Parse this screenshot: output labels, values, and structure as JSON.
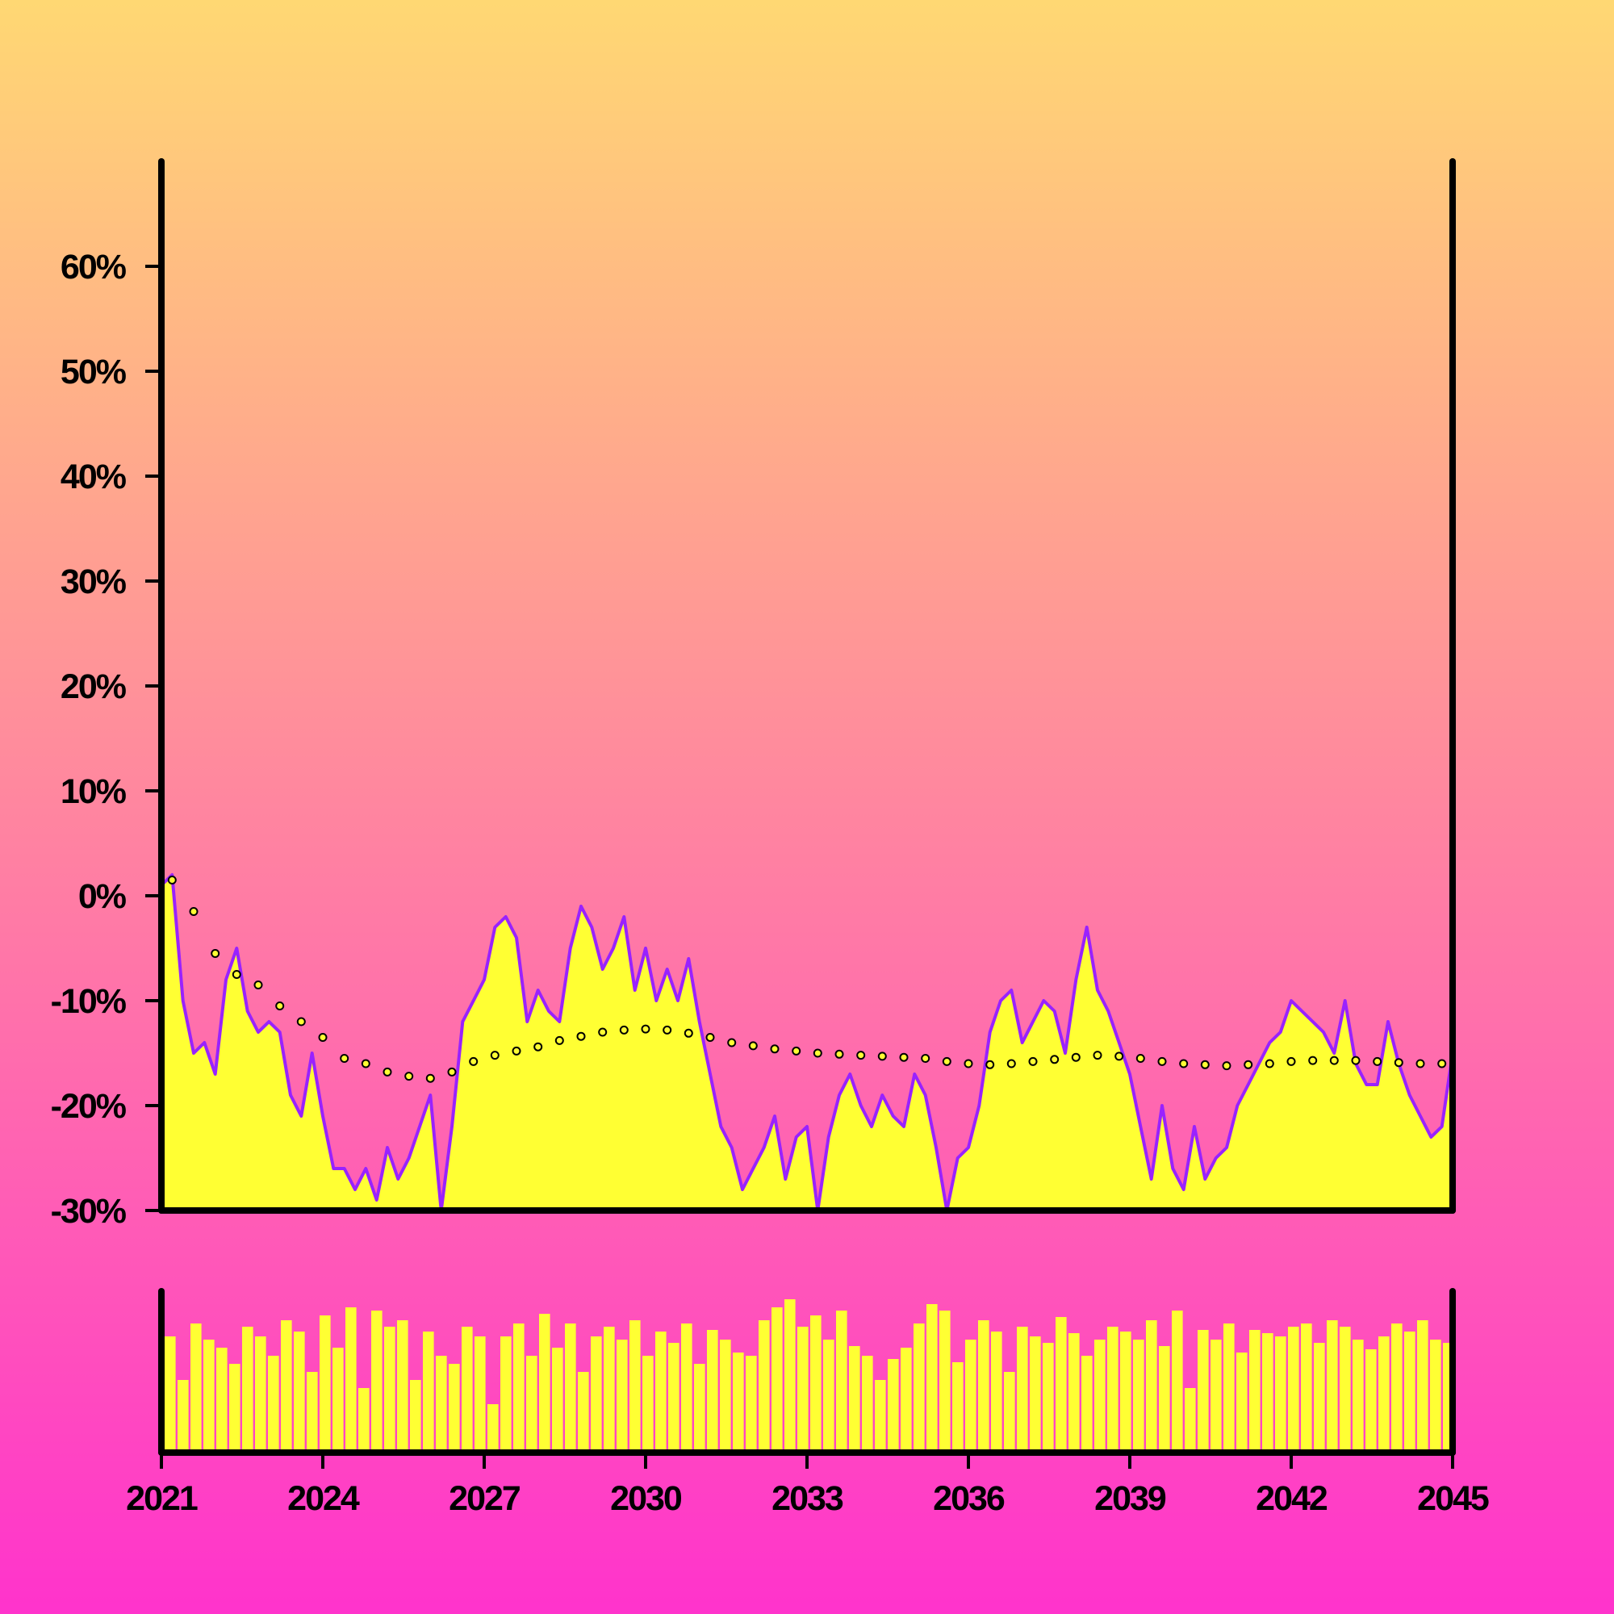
{
  "colors": {
    "background_top": "#ffd873",
    "background_bottom": "#ff33cc",
    "area_fill": "#ffff33",
    "price_line": "#9922ff",
    "trend_dot_fill": "#ffff33",
    "trend_dot_stroke": "#000000",
    "axis": "#000000"
  },
  "chart_data": {
    "type": "area",
    "title": "",
    "xlabel": "",
    "ylabel": "",
    "grid": false,
    "legend": "none",
    "x_range": [
      2021.0,
      2045.0
    ],
    "y_range": [
      -30,
      70
    ],
    "y_ticks": [
      -30,
      -20,
      -10,
      0,
      10,
      20,
      30,
      40,
      50,
      60
    ],
    "y_tick_labels": [
      "-30%",
      "-20%",
      "-10%",
      "0%",
      "10%",
      "20%",
      "30%",
      "40%",
      "50%",
      "60%"
    ],
    "x_ticks": [
      2021,
      2024,
      2027,
      2030,
      2033,
      2036,
      2039,
      2042,
      2045
    ],
    "x_tick_labels": [
      "2021",
      "2024",
      "2027",
      "2030",
      "2033",
      "2036",
      "2039",
      "2042",
      "2045"
    ],
    "series": [
      {
        "role": "main-line-with-area",
        "x": [
          2021.0,
          2021.2,
          2021.4,
          2021.6,
          2021.8,
          2022.0,
          2022.2,
          2022.4,
          2022.6,
          2022.8,
          2023.0,
          2023.2,
          2023.4,
          2023.6,
          2023.8,
          2024.0,
          2024.2,
          2024.4,
          2024.6,
          2024.8,
          2025.0,
          2025.2,
          2025.4,
          2025.6,
          2025.8,
          2026.0,
          2026.2,
          2026.4,
          2026.6,
          2026.8,
          2027.0,
          2027.2,
          2027.4,
          2027.6,
          2027.8,
          2028.0,
          2028.2,
          2028.4,
          2028.6,
          2028.8,
          2029.0,
          2029.2,
          2029.4,
          2029.6,
          2029.8,
          2030.0,
          2030.2,
          2030.4,
          2030.6,
          2030.8,
          2031.0,
          2031.2,
          2031.4,
          2031.6,
          2031.8,
          2032.0,
          2032.2,
          2032.4,
          2032.6,
          2032.8,
          2033.0,
          2033.2,
          2033.4,
          2033.6,
          2033.8,
          2034.0,
          2034.2,
          2034.4,
          2034.6,
          2034.8,
          2035.0,
          2035.2,
          2035.4,
          2035.6,
          2035.8,
          2036.0,
          2036.2,
          2036.4,
          2036.6,
          2036.8,
          2037.0,
          2037.2,
          2037.4,
          2037.6,
          2037.8,
          2038.0,
          2038.2,
          2038.4,
          2038.6,
          2038.8,
          2039.0,
          2039.2,
          2039.4,
          2039.6,
          2039.8,
          2040.0,
          2040.2,
          2040.4,
          2040.6,
          2040.8,
          2041.0,
          2041.2,
          2041.4,
          2041.6,
          2041.8,
          2042.0,
          2042.2,
          2042.4,
          2042.6,
          2042.8,
          2043.0,
          2043.2,
          2043.4,
          2043.6,
          2043.8,
          2044.0,
          2044.2,
          2044.4,
          2044.6,
          2044.8,
          2045.0
        ],
        "values": [
          1,
          2,
          -10,
          -15,
          -14,
          -17,
          -8,
          -5,
          -11,
          -13,
          -12,
          -13,
          -19,
          -21,
          -15,
          -21,
          -26,
          -26,
          -28,
          -26,
          -29,
          -24,
          -27,
          -25,
          -22,
          -19,
          -30,
          -22,
          -12,
          -10,
          -8,
          -3,
          -2,
          -4,
          -12,
          -9,
          -11,
          -12,
          -5,
          -1,
          -3,
          -7,
          -5,
          -2,
          -9,
          -5,
          -10,
          -7,
          -10,
          -6,
          -12,
          -17,
          -22,
          -24,
          -28,
          -26,
          -24,
          -21,
          -27,
          -23,
          -22,
          -30,
          -23,
          -19,
          -17,
          -20,
          -22,
          -19,
          -21,
          -22,
          -17,
          -19,
          -24,
          -30,
          -25,
          -24,
          -20,
          -13,
          -10,
          -9,
          -14,
          -12,
          -10,
          -11,
          -15,
          -8,
          -3,
          -9,
          -11,
          -14,
          -17,
          -22,
          -27,
          -20,
          -26,
          -28,
          -22,
          -27,
          -25,
          -24,
          -20,
          -18,
          -16,
          -14,
          -13,
          -10,
          -11,
          -12,
          -13,
          -15,
          -10,
          -16,
          -18,
          -18,
          -12,
          -16,
          -19,
          -21,
          -23,
          -22,
          -15
        ]
      },
      {
        "role": "trend-dots",
        "x": [
          2021.2,
          2021.6,
          2022.0,
          2022.4,
          2022.8,
          2023.2,
          2023.6,
          2024.0,
          2024.4,
          2024.8,
          2025.2,
          2025.6,
          2026.0,
          2026.4,
          2026.8,
          2027.2,
          2027.6,
          2028.0,
          2028.4,
          2028.8,
          2029.2,
          2029.6,
          2030.0,
          2030.4,
          2030.8,
          2031.2,
          2031.6,
          2032.0,
          2032.4,
          2032.8,
          2033.2,
          2033.6,
          2034.0,
          2034.4,
          2034.8,
          2035.2,
          2035.6,
          2036.0,
          2036.4,
          2036.8,
          2037.2,
          2037.6,
          2038.0,
          2038.4,
          2038.8,
          2039.2,
          2039.6,
          2040.0,
          2040.4,
          2040.8,
          2041.2,
          2041.6,
          2042.0,
          2042.4,
          2042.8,
          2043.2,
          2043.6,
          2044.0,
          2044.4,
          2044.8
        ],
        "values": [
          1.5,
          -1.5,
          -5.5,
          -7.5,
          -8.5,
          -10.5,
          -12,
          -13.5,
          -15.5,
          -16,
          -16.8,
          -17.2,
          -17.4,
          -16.8,
          -15.8,
          -15.2,
          -14.8,
          -14.4,
          -13.8,
          -13.4,
          -13,
          -12.8,
          -12.7,
          -12.8,
          -13.1,
          -13.5,
          -14,
          -14.3,
          -14.6,
          -14.8,
          -15,
          -15.1,
          -15.2,
          -15.3,
          -15.4,
          -15.5,
          -15.8,
          -16,
          -16.1,
          -16,
          -15.8,
          -15.6,
          -15.4,
          -15.2,
          -15.3,
          -15.5,
          -15.8,
          -16,
          -16.1,
          -16.2,
          -16.1,
          -16,
          -15.8,
          -15.7,
          -15.7,
          -15.7,
          -15.8,
          -15.9,
          -16,
          -16
        ]
      }
    ],
    "volume": {
      "x": [
        2021.0,
        2021.24,
        2021.48,
        2021.72,
        2021.96,
        2022.2,
        2022.44,
        2022.68,
        2022.92,
        2023.16,
        2023.4,
        2023.64,
        2023.88,
        2024.12,
        2024.36,
        2024.6,
        2024.84,
        2025.08,
        2025.32,
        2025.56,
        2025.8,
        2026.04,
        2026.28,
        2026.52,
        2026.76,
        2027.0,
        2027.24,
        2027.48,
        2027.72,
        2027.96,
        2028.2,
        2028.44,
        2028.68,
        2028.92,
        2029.16,
        2029.4,
        2029.64,
        2029.88,
        2030.12,
        2030.36,
        2030.6,
        2030.84,
        2031.08,
        2031.32,
        2031.56,
        2031.8,
        2032.04,
        2032.28,
        2032.52,
        2032.76,
        2033.0,
        2033.24,
        2033.48,
        2033.72,
        2033.96,
        2034.2,
        2034.44,
        2034.68,
        2034.92,
        2035.16,
        2035.4,
        2035.64,
        2035.88,
        2036.12,
        2036.36,
        2036.6,
        2036.84,
        2037.08,
        2037.32,
        2037.56,
        2037.8,
        2038.04,
        2038.28,
        2038.52,
        2038.76,
        2039.0,
        2039.24,
        2039.48,
        2039.72,
        2039.96,
        2040.2,
        2040.44,
        2040.68,
        2040.92,
        2041.16,
        2041.4,
        2041.64,
        2041.88,
        2042.12,
        2042.36,
        2042.6,
        2042.84,
        2043.08,
        2043.32,
        2043.56,
        2043.8,
        2044.04,
        2044.28,
        2044.52,
        2044.76
      ],
      "values": [
        0.72,
        0.45,
        0.8,
        0.7,
        0.65,
        0.55,
        0.78,
        0.72,
        0.6,
        0.82,
        0.75,
        0.5,
        0.85,
        0.65,
        0.9,
        0.4,
        0.88,
        0.78,
        0.82,
        0.45,
        0.75,
        0.6,
        0.55,
        0.78,
        0.72,
        0.3,
        0.72,
        0.8,
        0.6,
        0.86,
        0.65,
        0.8,
        0.5,
        0.72,
        0.78,
        0.7,
        0.82,
        0.6,
        0.75,
        0.68,
        0.8,
        0.55,
        0.76,
        0.7,
        0.62,
        0.6,
        0.82,
        0.9,
        0.95,
        0.78,
        0.85,
        0.7,
        0.88,
        0.66,
        0.6,
        0.45,
        0.58,
        0.65,
        0.8,
        0.92,
        0.88,
        0.56,
        0.7,
        0.82,
        0.75,
        0.5,
        0.78,
        0.72,
        0.68,
        0.84,
        0.74,
        0.6,
        0.7,
        0.78,
        0.75,
        0.7,
        0.82,
        0.66,
        0.88,
        0.4,
        0.76,
        0.7,
        0.8,
        0.62,
        0.76,
        0.74,
        0.72,
        0.78,
        0.8,
        0.68,
        0.82,
        0.78,
        0.7,
        0.64,
        0.72,
        0.8,
        0.75,
        0.82,
        0.7,
        0.68
      ]
    }
  }
}
